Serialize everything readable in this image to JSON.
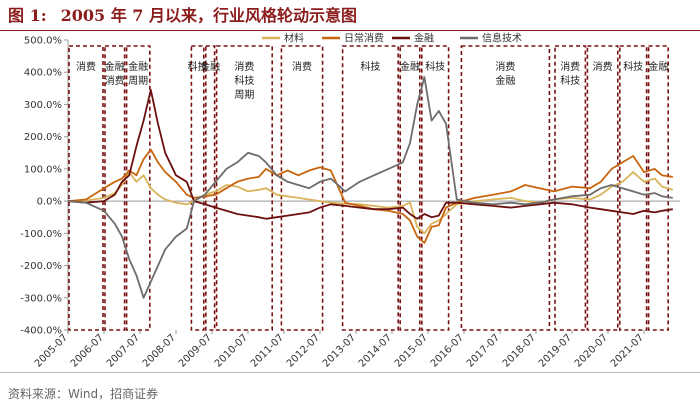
{
  "figure": {
    "number": "图 1:",
    "title": "2005 年 7 月以来，行业风格轮动示意图",
    "source": "资料来源：Wind，招商证券"
  },
  "colors": {
    "title": "#8a1c1c",
    "box": "#7a1212",
    "axis": "#999999"
  },
  "chart_data": {
    "type": "line",
    "ylim": [
      -400,
      500
    ],
    "y_ticks": [
      "500.0%",
      "400.0%",
      "300.0%",
      "200.0%",
      "100.0%",
      "0.0%",
      "-100.0%",
      "-200.0%",
      "-300.0%",
      "-400.0%"
    ],
    "y_tick_values": [
      500,
      400,
      300,
      200,
      100,
      0,
      -100,
      -200,
      -300,
      -400
    ],
    "x_range": [
      2005.5,
      2022.5
    ],
    "x_ticks": [
      "2005-07",
      "2006-07",
      "2007-07",
      "2008-07",
      "2009-07",
      "2010-07",
      "2011-07",
      "2012-07",
      "2013-07",
      "2014-07",
      "2015-07",
      "2016-07",
      "2017-07",
      "2018-07",
      "2019-07",
      "2020-07",
      "2021-07"
    ],
    "x_tick_values": [
      2005.5,
      2006.5,
      2007.5,
      2008.5,
      2009.5,
      2010.5,
      2011.5,
      2012.5,
      2013.5,
      2014.5,
      2015.5,
      2016.5,
      2017.5,
      2018.5,
      2019.5,
      2020.5,
      2021.5
    ],
    "legend_position": "top-right",
    "series": [
      {
        "name": "材料",
        "color": "#d9b45a",
        "points": [
          [
            2005.5,
            0
          ],
          [
            2006.0,
            2
          ],
          [
            2006.5,
            10
          ],
          [
            2006.8,
            25
          ],
          [
            2007.0,
            50
          ],
          [
            2007.2,
            90
          ],
          [
            2007.4,
            60
          ],
          [
            2007.6,
            80
          ],
          [
            2007.8,
            40
          ],
          [
            2008.0,
            20
          ],
          [
            2008.2,
            5
          ],
          [
            2008.5,
            -5
          ],
          [
            2008.8,
            -10
          ],
          [
            2009.0,
            0
          ],
          [
            2009.3,
            20
          ],
          [
            2009.6,
            30
          ],
          [
            2009.9,
            50
          ],
          [
            2010.2,
            45
          ],
          [
            2010.5,
            30
          ],
          [
            2010.8,
            35
          ],
          [
            2011.0,
            40
          ],
          [
            2011.3,
            20
          ],
          [
            2011.6,
            15
          ],
          [
            2011.9,
            10
          ],
          [
            2012.2,
            5
          ],
          [
            2012.5,
            0
          ],
          [
            2012.8,
            -5
          ],
          [
            2013.2,
            -8
          ],
          [
            2013.6,
            -10
          ],
          [
            2014.0,
            -15
          ],
          [
            2014.4,
            -20
          ],
          [
            2014.8,
            -15
          ],
          [
            2015.0,
            -5
          ],
          [
            2015.2,
            -80
          ],
          [
            2015.4,
            -100
          ],
          [
            2015.6,
            -70
          ],
          [
            2015.8,
            -60
          ],
          [
            2016.0,
            -40
          ],
          [
            2016.3,
            -10
          ],
          [
            2016.8,
            0
          ],
          [
            2017.3,
            5
          ],
          [
            2017.8,
            10
          ],
          [
            2018.2,
            0
          ],
          [
            2018.6,
            -5
          ],
          [
            2019.0,
            5
          ],
          [
            2019.5,
            10
          ],
          [
            2020.0,
            5
          ],
          [
            2020.3,
            20
          ],
          [
            2020.6,
            45
          ],
          [
            2020.9,
            60
          ],
          [
            2021.2,
            90
          ],
          [
            2021.5,
            60
          ],
          [
            2021.8,
            70
          ],
          [
            2022.0,
            45
          ],
          [
            2022.3,
            35
          ]
        ]
      },
      {
        "name": "日常消费",
        "color": "#c8650f",
        "points": [
          [
            2005.5,
            0
          ],
          [
            2006.0,
            5
          ],
          [
            2006.5,
            40
          ],
          [
            2006.8,
            60
          ],
          [
            2007.0,
            70
          ],
          [
            2007.2,
            95
          ],
          [
            2007.4,
            80
          ],
          [
            2007.6,
            130
          ],
          [
            2007.8,
            160
          ],
          [
            2008.0,
            120
          ],
          [
            2008.2,
            90
          ],
          [
            2008.5,
            60
          ],
          [
            2008.8,
            20
          ],
          [
            2009.0,
            10
          ],
          [
            2009.3,
            15
          ],
          [
            2009.6,
            20
          ],
          [
            2009.9,
            40
          ],
          [
            2010.2,
            60
          ],
          [
            2010.5,
            70
          ],
          [
            2010.8,
            75
          ],
          [
            2011.0,
            100
          ],
          [
            2011.3,
            80
          ],
          [
            2011.6,
            95
          ],
          [
            2011.9,
            80
          ],
          [
            2012.2,
            95
          ],
          [
            2012.5,
            105
          ],
          [
            2012.8,
            95
          ],
          [
            2013.2,
            -5
          ],
          [
            2013.6,
            -15
          ],
          [
            2014.0,
            -25
          ],
          [
            2014.4,
            -30
          ],
          [
            2014.8,
            -40
          ],
          [
            2015.0,
            -60
          ],
          [
            2015.2,
            -110
          ],
          [
            2015.4,
            -130
          ],
          [
            2015.6,
            -80
          ],
          [
            2015.8,
            -75
          ],
          [
            2016.0,
            -20
          ],
          [
            2016.3,
            -5
          ],
          [
            2016.8,
            10
          ],
          [
            2017.3,
            20
          ],
          [
            2017.8,
            30
          ],
          [
            2018.2,
            50
          ],
          [
            2018.6,
            40
          ],
          [
            2019.0,
            30
          ],
          [
            2019.5,
            45
          ],
          [
            2020.0,
            40
          ],
          [
            2020.3,
            60
          ],
          [
            2020.6,
            100
          ],
          [
            2020.9,
            120
          ],
          [
            2021.2,
            140
          ],
          [
            2021.5,
            90
          ],
          [
            2021.8,
            100
          ],
          [
            2022.0,
            80
          ],
          [
            2022.3,
            75
          ]
        ]
      },
      {
        "name": "金融",
        "color": "#6b0f0f",
        "points": [
          [
            2005.5,
            0
          ],
          [
            2006.0,
            -5
          ],
          [
            2006.5,
            0
          ],
          [
            2006.8,
            20
          ],
          [
            2007.0,
            60
          ],
          [
            2007.2,
            80
          ],
          [
            2007.4,
            170
          ],
          [
            2007.6,
            250
          ],
          [
            2007.8,
            345
          ],
          [
            2008.0,
            240
          ],
          [
            2008.2,
            150
          ],
          [
            2008.5,
            80
          ],
          [
            2008.8,
            60
          ],
          [
            2009.0,
            0
          ],
          [
            2009.3,
            -10
          ],
          [
            2009.6,
            -20
          ],
          [
            2009.9,
            -30
          ],
          [
            2010.2,
            -40
          ],
          [
            2010.5,
            -45
          ],
          [
            2010.8,
            -50
          ],
          [
            2011.0,
            -55
          ],
          [
            2011.3,
            -50
          ],
          [
            2011.6,
            -45
          ],
          [
            2011.9,
            -40
          ],
          [
            2012.2,
            -35
          ],
          [
            2012.5,
            -20
          ],
          [
            2012.8,
            -10
          ],
          [
            2013.2,
            -15
          ],
          [
            2013.6,
            -20
          ],
          [
            2014.0,
            -25
          ],
          [
            2014.4,
            -25
          ],
          [
            2014.8,
            -20
          ],
          [
            2015.0,
            -40
          ],
          [
            2015.2,
            -55
          ],
          [
            2015.4,
            -40
          ],
          [
            2015.6,
            -50
          ],
          [
            2015.8,
            -45
          ],
          [
            2016.0,
            -5
          ],
          [
            2016.3,
            -5
          ],
          [
            2016.8,
            -10
          ],
          [
            2017.3,
            -15
          ],
          [
            2017.8,
            -20
          ],
          [
            2018.2,
            -15
          ],
          [
            2018.6,
            -10
          ],
          [
            2019.0,
            -5
          ],
          [
            2019.5,
            -10
          ],
          [
            2020.0,
            -20
          ],
          [
            2020.3,
            -25
          ],
          [
            2020.6,
            -30
          ],
          [
            2020.9,
            -35
          ],
          [
            2021.2,
            -40
          ],
          [
            2021.5,
            -30
          ],
          [
            2021.8,
            -35
          ],
          [
            2022.0,
            -30
          ],
          [
            2022.3,
            -25
          ]
        ]
      },
      {
        "name": "信息技术",
        "color": "#6d6d6d",
        "points": [
          [
            2005.5,
            0
          ],
          [
            2006.0,
            -5
          ],
          [
            2006.5,
            -30
          ],
          [
            2006.8,
            -70
          ],
          [
            2007.0,
            -110
          ],
          [
            2007.2,
            -180
          ],
          [
            2007.4,
            -230
          ],
          [
            2007.6,
            -300
          ],
          [
            2007.8,
            -250
          ],
          [
            2008.0,
            -200
          ],
          [
            2008.2,
            -150
          ],
          [
            2008.5,
            -110
          ],
          [
            2008.8,
            -85
          ],
          [
            2009.0,
            0
          ],
          [
            2009.3,
            20
          ],
          [
            2009.6,
            60
          ],
          [
            2009.9,
            100
          ],
          [
            2010.2,
            120
          ],
          [
            2010.5,
            150
          ],
          [
            2010.8,
            140
          ],
          [
            2011.0,
            120
          ],
          [
            2011.3,
            80
          ],
          [
            2011.6,
            60
          ],
          [
            2011.9,
            50
          ],
          [
            2012.2,
            40
          ],
          [
            2012.5,
            60
          ],
          [
            2012.8,
            70
          ],
          [
            2013.2,
            30
          ],
          [
            2013.6,
            60
          ],
          [
            2014.0,
            80
          ],
          [
            2014.4,
            100
          ],
          [
            2014.8,
            120
          ],
          [
            2015.0,
            180
          ],
          [
            2015.2,
            300
          ],
          [
            2015.4,
            385
          ],
          [
            2015.6,
            250
          ],
          [
            2015.8,
            280
          ],
          [
            2016.0,
            240
          ],
          [
            2016.3,
            5
          ],
          [
            2016.8,
            -5
          ],
          [
            2017.3,
            -10
          ],
          [
            2017.8,
            -5
          ],
          [
            2018.2,
            -10
          ],
          [
            2018.6,
            -5
          ],
          [
            2019.0,
            5
          ],
          [
            2019.5,
            15
          ],
          [
            2020.0,
            20
          ],
          [
            2020.3,
            40
          ],
          [
            2020.6,
            50
          ],
          [
            2020.9,
            40
          ],
          [
            2021.2,
            30
          ],
          [
            2021.5,
            20
          ],
          [
            2021.8,
            25
          ],
          [
            2022.0,
            15
          ],
          [
            2022.3,
            10
          ]
        ]
      }
    ],
    "periods": [
      {
        "x0": 2005.5,
        "x1": 2006.5,
        "labels": [
          "消费"
        ]
      },
      {
        "x0": 2006.5,
        "x1": 2007.1,
        "labels": [
          "金融",
          "消费"
        ]
      },
      {
        "x0": 2007.1,
        "x1": 2007.8,
        "labels": [
          "金融",
          "周期"
        ]
      },
      {
        "x0": 2008.9,
        "x1": 2009.3,
        "labels": [
          "科技"
        ]
      },
      {
        "x0": 2009.3,
        "x1": 2009.6,
        "labels": [
          "金融"
        ]
      },
      {
        "x0": 2009.6,
        "x1": 2011.2,
        "labels": [
          "消费",
          "科技",
          "周期"
        ]
      },
      {
        "x0": 2011.4,
        "x1": 2012.6,
        "labels": [
          "消费"
        ]
      },
      {
        "x0": 2013.1,
        "x1": 2014.7,
        "labels": [
          "科技"
        ]
      },
      {
        "x0": 2014.7,
        "x1": 2015.3,
        "labels": [
          "金融"
        ]
      },
      {
        "x0": 2015.3,
        "x1": 2016.1,
        "labels": [
          "科技"
        ]
      },
      {
        "x0": 2016.4,
        "x1": 2018.9,
        "labels": [
          "消费",
          "金融"
        ]
      },
      {
        "x0": 2019.0,
        "x1": 2019.9,
        "labels": [
          "消费",
          "科技"
        ]
      },
      {
        "x0": 2019.9,
        "x1": 2020.8,
        "labels": [
          "消费"
        ]
      },
      {
        "x0": 2020.8,
        "x1": 2021.6,
        "labels": [
          "科技"
        ]
      },
      {
        "x0": 2021.6,
        "x1": 2022.2,
        "labels": [
          "金融"
        ]
      }
    ]
  }
}
